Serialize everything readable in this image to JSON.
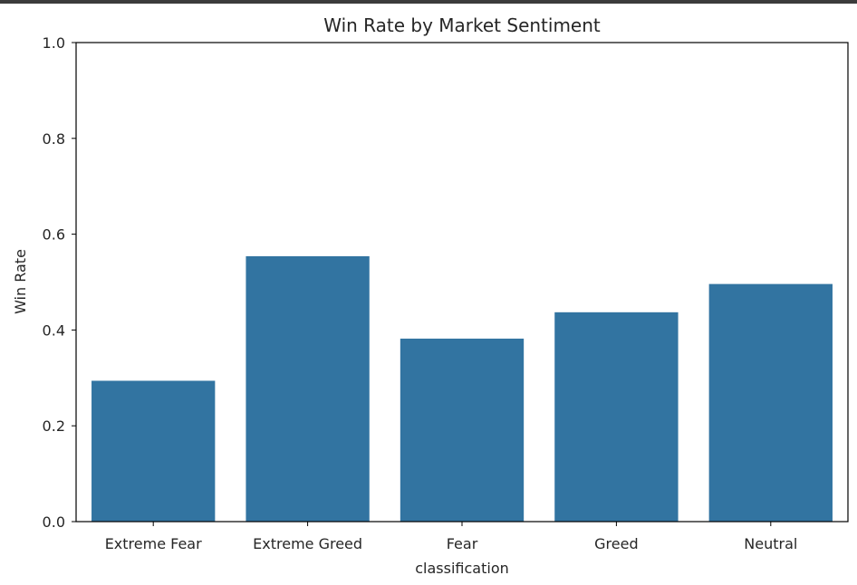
{
  "chart_data": {
    "type": "bar",
    "title": "Win Rate by Market Sentiment",
    "xlabel": "classification",
    "ylabel": "Win Rate",
    "categories": [
      "Extreme Fear",
      "Extreme Greed",
      "Fear",
      "Greed",
      "Neutral"
    ],
    "values": [
      0.294,
      0.554,
      0.382,
      0.437,
      0.496
    ],
    "ylim": [
      0,
      1.0
    ],
    "yticks": [
      0.0,
      0.2,
      0.4,
      0.6,
      0.8,
      1.0
    ],
    "ytick_labels": [
      "0.0",
      "0.2",
      "0.4",
      "0.6",
      "0.8",
      "1.0"
    ],
    "bar_color": "#3274a1",
    "grid": false,
    "legend": "none"
  }
}
